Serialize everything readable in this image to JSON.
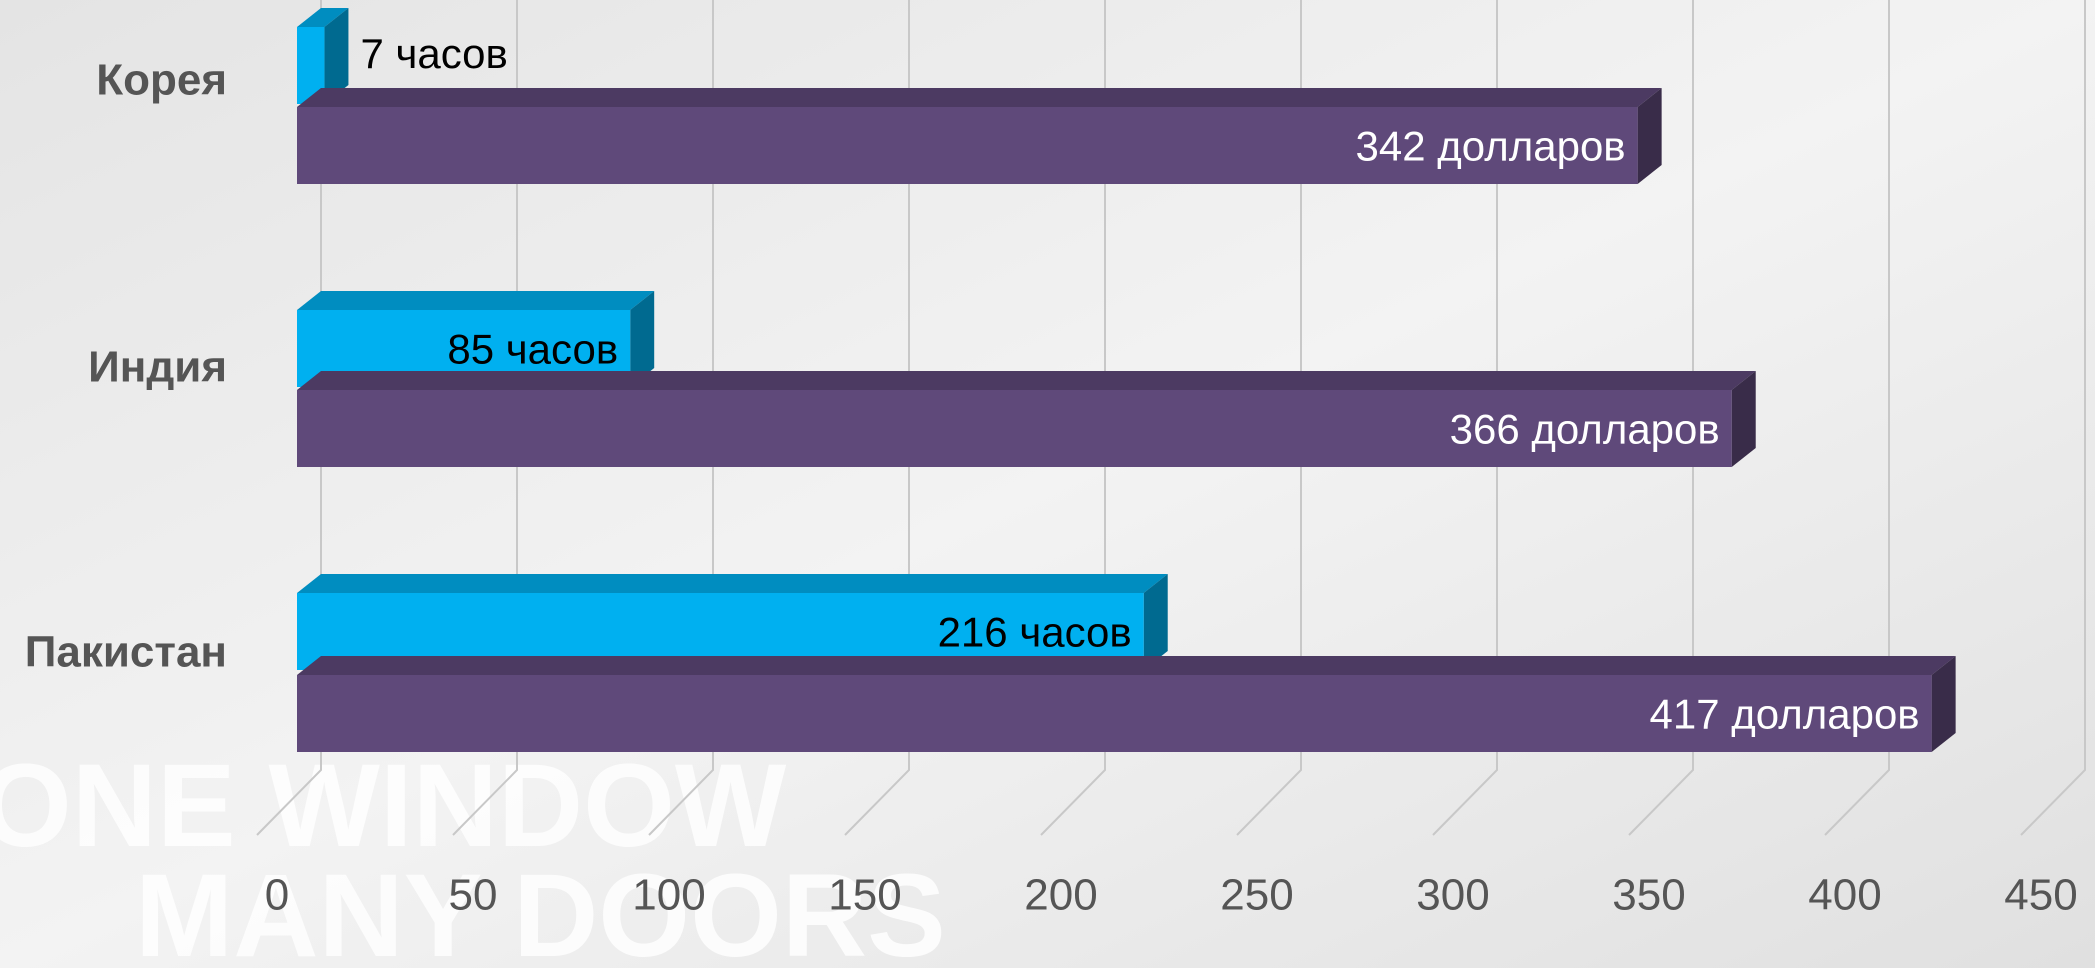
{
  "chart_data": {
    "type": "bar3d_horizontal",
    "categories": [
      "Корея",
      "Индия",
      "Пакистан"
    ],
    "series": [
      {
        "color": "#00b0f0",
        "values": [
          7,
          85,
          216
        ],
        "value_labels": [
          "7 часов",
          "85 часов",
          "216 часов"
        ]
      },
      {
        "color": "#5f497a",
        "values": [
          342,
          366,
          417
        ],
        "value_labels": [
          "342 долларов",
          "366 долларов",
          "417 долларов"
        ]
      }
    ],
    "xlim": [
      0,
      450
    ],
    "xticks": [
      0,
      50,
      100,
      150,
      200,
      250,
      300,
      350,
      400,
      450
    ],
    "grid": true,
    "annotations": [
      "ONE WINDOW",
      "MANY DOORS"
    ]
  }
}
